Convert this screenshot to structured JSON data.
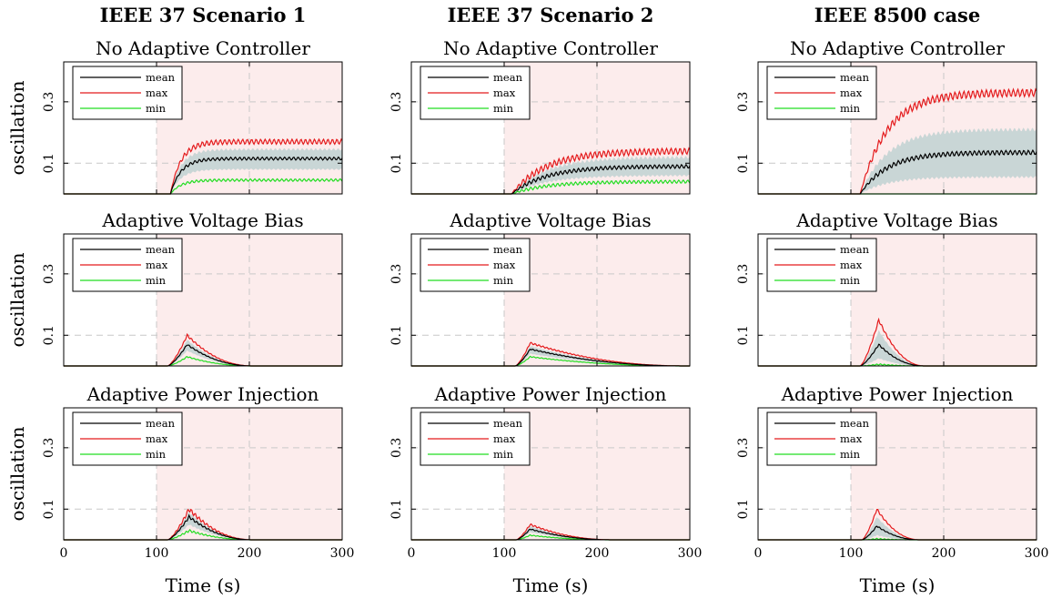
{
  "column_titles": [
    "IEEE 37 Scenario 1",
    "IEEE 37 Scenario 2",
    "IEEE 8500 case"
  ],
  "row_titles": [
    "No Adaptive Controller",
    "Adaptive Voltage Bias",
    "Adaptive Power Injection"
  ],
  "ylabel": "oscillation",
  "xlabel": "Time (s)",
  "colors": {
    "mean": "#000000",
    "max": "#e41a1c",
    "min": "#22dd22",
    "band": "#c9d6d6",
    "shade": "#fcecec",
    "grid": "#c8c8c8"
  },
  "chart_data": [
    {
      "type": "line",
      "title": "No Adaptive Controller",
      "column": "IEEE 37 Scenario 1",
      "xlim": [
        0,
        300
      ],
      "ylim": [
        0,
        0.43
      ],
      "xticks": [
        0,
        100,
        200,
        300
      ],
      "yticks": [
        0.1,
        0.3
      ],
      "grid": true,
      "legend": "top-left",
      "shaded_region": [
        100,
        300
      ],
      "attack_start": 115,
      "sat_time": 140,
      "decay": false,
      "ripple": 0.008,
      "series": [
        {
          "name": "mean",
          "peak": 0.115
        },
        {
          "name": "max",
          "peak": 0.17
        },
        {
          "name": "min",
          "peak": 0.045
        }
      ],
      "band": [
        0.08,
        0.145
      ]
    },
    {
      "type": "line",
      "title": "No Adaptive Controller",
      "column": "IEEE 37 Scenario 2",
      "xlim": [
        0,
        300
      ],
      "ylim": [
        0,
        0.43
      ],
      "xticks": [
        0,
        100,
        200,
        300
      ],
      "yticks": [
        0.1,
        0.3
      ],
      "grid": true,
      "legend": "top-left",
      "shaded_region": [
        100,
        300
      ],
      "attack_start": 108,
      "sat_time": 190,
      "decay": false,
      "ripple": 0.01,
      "series": [
        {
          "name": "mean",
          "peak": 0.09
        },
        {
          "name": "max",
          "peak": 0.14
        },
        {
          "name": "min",
          "peak": 0.04
        }
      ],
      "band": [
        0.06,
        0.12
      ]
    },
    {
      "type": "line",
      "title": "No Adaptive Controller",
      "column": "IEEE 8500 case",
      "xlim": [
        0,
        300
      ],
      "ylim": [
        0,
        0.43
      ],
      "xticks": [
        0,
        100,
        200,
        300
      ],
      "yticks": [
        0.1,
        0.3
      ],
      "grid": true,
      "legend": "top-left",
      "shaded_region": [
        100,
        300
      ],
      "attack_start": 110,
      "sat_time": 175,
      "decay": false,
      "ripple": 0.012,
      "series": [
        {
          "name": "mean",
          "peak": 0.135
        },
        {
          "name": "max",
          "peak": 0.33
        },
        {
          "name": "min",
          "peak": 0.0
        }
      ],
      "band": [
        0.055,
        0.21
      ]
    },
    {
      "type": "line",
      "title": "Adaptive Voltage Bias",
      "column": "IEEE 37 Scenario 1",
      "xlim": [
        0,
        300
      ],
      "ylim": [
        0,
        0.43
      ],
      "xticks": [
        0,
        100,
        200,
        300
      ],
      "yticks": [
        0.1,
        0.3
      ],
      "grid": true,
      "legend": "top-left",
      "shaded_region": [
        100,
        300
      ],
      "attack_start": 112,
      "peak_time": 133,
      "end_time": 205,
      "decay": true,
      "ripple": 0.004,
      "series": [
        {
          "name": "mean",
          "peak": 0.07
        },
        {
          "name": "max",
          "peak": 0.1
        },
        {
          "name": "min",
          "peak": 0.03
        }
      ],
      "band": [
        0.05,
        0.085
      ]
    },
    {
      "type": "line",
      "title": "Adaptive Voltage Bias",
      "column": "IEEE 37 Scenario 2",
      "xlim": [
        0,
        300
      ],
      "ylim": [
        0,
        0.43
      ],
      "xticks": [
        0,
        100,
        200,
        300
      ],
      "yticks": [
        0.1,
        0.3
      ],
      "grid": true,
      "legend": "top-left",
      "shaded_region": [
        100,
        300
      ],
      "attack_start": 112,
      "peak_time": 128,
      "end_time": 300,
      "decay": true,
      "ripple": 0.003,
      "series": [
        {
          "name": "mean",
          "peak": 0.055
        },
        {
          "name": "max",
          "peak": 0.075
        },
        {
          "name": "min",
          "peak": 0.03
        }
      ],
      "band": [
        0.04,
        0.065
      ]
    },
    {
      "type": "line",
      "title": "Adaptive Voltage Bias",
      "column": "IEEE 8500 case",
      "xlim": [
        0,
        300
      ],
      "ylim": [
        0,
        0.43
      ],
      "xticks": [
        0,
        100,
        200,
        300
      ],
      "yticks": [
        0.1,
        0.3
      ],
      "grid": true,
      "legend": "top-left",
      "shaded_region": [
        100,
        300
      ],
      "attack_start": 110,
      "peak_time": 130,
      "end_time": 180,
      "decay": true,
      "ripple": 0.005,
      "series": [
        {
          "name": "mean",
          "peak": 0.07
        },
        {
          "name": "max",
          "peak": 0.15
        },
        {
          "name": "min",
          "peak": 0.005
        }
      ],
      "band": [
        0.025,
        0.115
      ]
    },
    {
      "type": "line",
      "title": "Adaptive Power Injection",
      "column": "IEEE 37 Scenario 1",
      "xlim": [
        0,
        300
      ],
      "ylim": [
        0,
        0.43
      ],
      "xticks": [
        0,
        100,
        200,
        300
      ],
      "yticks": [
        0.1,
        0.3
      ],
      "grid": true,
      "legend": "top-left",
      "shaded_region": [
        100,
        300
      ],
      "attack_start": 112,
      "peak_time": 135,
      "end_time": 205,
      "decay": true,
      "ripple": 0.008,
      "series": [
        {
          "name": "mean",
          "peak": 0.075
        },
        {
          "name": "max",
          "peak": 0.1
        },
        {
          "name": "min",
          "peak": 0.03
        }
      ],
      "band": [
        0.05,
        0.09
      ]
    },
    {
      "type": "line",
      "title": "Adaptive Power Injection",
      "column": "IEEE 37 Scenario 2",
      "xlim": [
        0,
        300
      ],
      "ylim": [
        0,
        0.43
      ],
      "xticks": [
        0,
        100,
        200,
        300
      ],
      "yticks": [
        0.1,
        0.3
      ],
      "grid": true,
      "legend": "top-left",
      "shaded_region": [
        100,
        300
      ],
      "attack_start": 113,
      "peak_time": 128,
      "end_time": 220,
      "decay": true,
      "ripple": 0.003,
      "series": [
        {
          "name": "mean",
          "peak": 0.035
        },
        {
          "name": "max",
          "peak": 0.05
        },
        {
          "name": "min",
          "peak": 0.015
        }
      ],
      "band": [
        0.025,
        0.045
      ]
    },
    {
      "type": "line",
      "title": "Adaptive Power Injection",
      "column": "IEEE 8500 case",
      "xlim": [
        0,
        300
      ],
      "ylim": [
        0,
        0.43
      ],
      "xticks": [
        0,
        100,
        200,
        300
      ],
      "yticks": [
        0.1,
        0.3
      ],
      "grid": true,
      "legend": "top-left",
      "shaded_region": [
        100,
        300
      ],
      "attack_start": 112,
      "peak_time": 128,
      "end_time": 175,
      "decay": true,
      "ripple": 0.004,
      "series": [
        {
          "name": "mean",
          "peak": 0.045
        },
        {
          "name": "max",
          "peak": 0.1
        },
        {
          "name": "min",
          "peak": 0.003
        }
      ],
      "band": [
        0.015,
        0.075
      ]
    }
  ]
}
